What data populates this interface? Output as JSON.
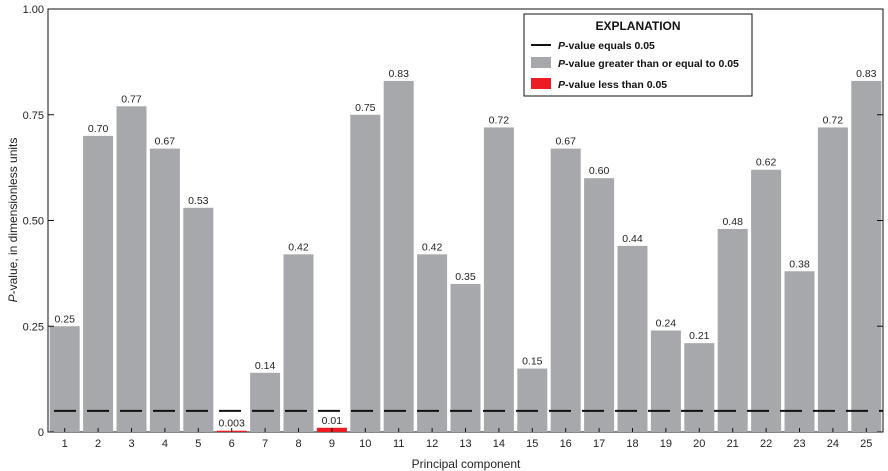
{
  "chart_data": {
    "type": "bar",
    "xlabel": "Principal component",
    "ylabel_italic": "P",
    "ylabel_rest": "-value, in dimensionless units",
    "ylim": [
      0,
      1.0
    ],
    "yticks": [
      "0",
      "0.25",
      "0.50",
      "0.75",
      "1.00"
    ],
    "categories": [
      "1",
      "2",
      "3",
      "4",
      "5",
      "6",
      "7",
      "8",
      "9",
      "10",
      "11",
      "12",
      "13",
      "14",
      "15",
      "16",
      "17",
      "18",
      "19",
      "20",
      "21",
      "22",
      "23",
      "24",
      "25"
    ],
    "values": [
      0.25,
      0.7,
      0.77,
      0.67,
      0.53,
      0.003,
      0.14,
      0.42,
      0.01,
      0.75,
      0.83,
      0.42,
      0.35,
      0.72,
      0.15,
      0.67,
      0.6,
      0.44,
      0.24,
      0.21,
      0.48,
      0.62,
      0.38,
      0.72,
      0.83
    ],
    "value_labels": [
      "0.25",
      "0.70",
      "0.77",
      "0.67",
      "0.53",
      "0.003",
      "0.14",
      "0.42",
      "0.01",
      "0.75",
      "0.83",
      "0.42",
      "0.35",
      "0.72",
      "0.15",
      "0.67",
      "0.60",
      "0.44",
      "0.24",
      "0.21",
      "0.48",
      "0.62",
      "0.38",
      "0.72",
      "0.83"
    ],
    "threshold": 0.05,
    "colors": {
      "gray": "#a7a8ab",
      "red": "#ed1c24",
      "line": "#111111"
    },
    "legend": {
      "title": "EXPLANATION",
      "placement": "top-right",
      "items": [
        {
          "italic": "P",
          "rest": "-value equals 0.05",
          "kind": "line"
        },
        {
          "italic": "P",
          "rest": "-value greater than or equal to 0.05",
          "kind": "gray"
        },
        {
          "italic": "P",
          "rest": "-value less than 0.05",
          "kind": "red"
        }
      ]
    }
  }
}
